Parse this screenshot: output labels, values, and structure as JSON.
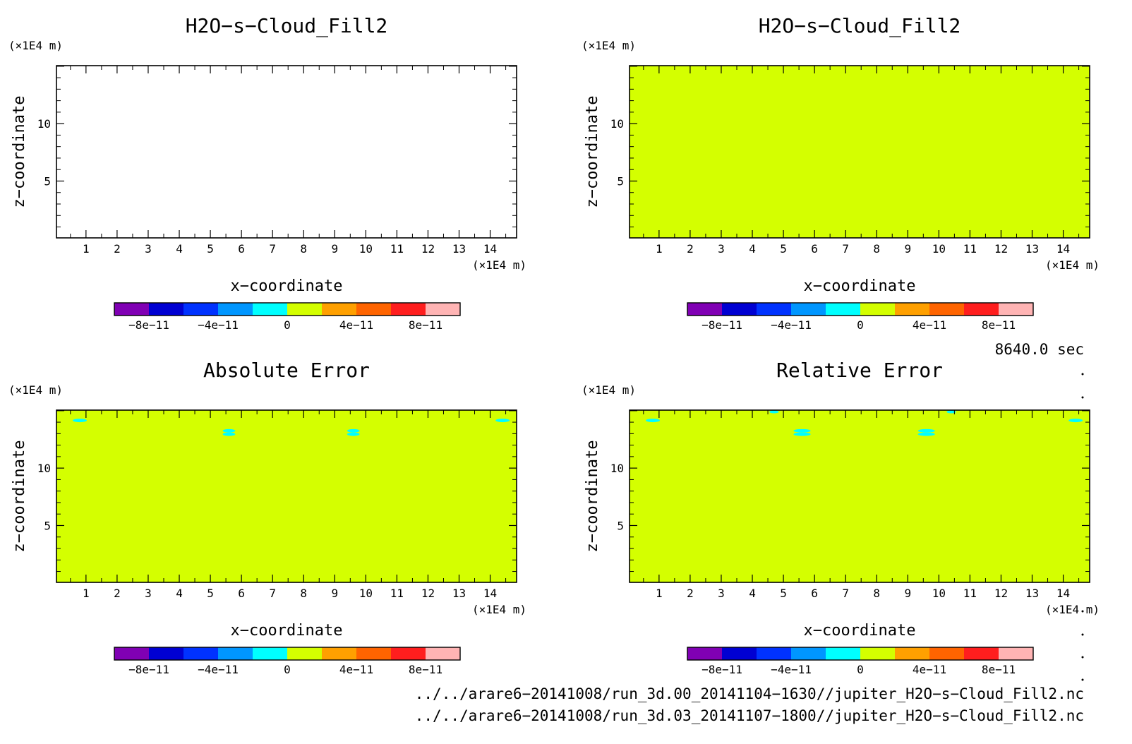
{
  "colors": {
    "fill": "#d4ff00",
    "cyan": "#00ffff",
    "frame": "#000000",
    "colorbar": [
      "#8000b4",
      "#0000d2",
      "#0032ff",
      "#0096ff",
      "#00ffff",
      "#d4ff00",
      "#ffa000",
      "#ff6400",
      "#ff1e1e",
      "#ffb4b4"
    ]
  },
  "colorbar": {
    "range": [
      -1e-10,
      1e-10
    ],
    "tick_values": [
      -8e-11,
      -4e-11,
      0,
      4e-11,
      8e-11
    ],
    "tick_labels": [
      "−8e−11",
      "−4e−11",
      "0",
      "4e−11",
      "8e−11"
    ]
  },
  "time_label": "8640.0 sec",
  "files": [
    "../../arare6−20141008/run_3d.00_20141104−1630//jupiter_H2O−s−Cloud_Fill2.nc",
    "../../arare6−20141008/run_3d.03_20141107−1800//jupiter_H2O−s−Cloud_Fill2.nc"
  ],
  "chart_data": [
    {
      "type": "heatmap",
      "title": "H2O−s−Cloud_Fill2",
      "xlabel": "x−coordinate",
      "ylabel": "z−coordinate",
      "x_unit": "(×1E4 m)",
      "y_unit": "(×1E4 m)",
      "xlim": [
        0.05,
        14.85
      ],
      "ylim": [
        0.05,
        15.05
      ],
      "x_ticks": [
        1,
        2,
        3,
        4,
        5,
        6,
        7,
        8,
        9,
        10,
        11,
        12,
        13,
        14
      ],
      "y_ticks": [
        5,
        10
      ],
      "fill": "none",
      "blobs": []
    },
    {
      "type": "heatmap",
      "title": "H2O−s−Cloud_Fill2",
      "xlabel": "x−coordinate",
      "ylabel": "z−coordinate",
      "x_unit": "(×1E4 m)",
      "y_unit": "(×1E4 m)",
      "xlim": [
        0.05,
        14.85
      ],
      "ylim": [
        0.05,
        15.05
      ],
      "x_ticks": [
        1,
        2,
        3,
        4,
        5,
        6,
        7,
        8,
        9,
        10,
        11,
        12,
        13,
        14
      ],
      "y_ticks": [
        5,
        10
      ],
      "fill": "uniform",
      "blobs": []
    },
    {
      "type": "heatmap",
      "title": "Absolute Error",
      "xlabel": "x−coordinate",
      "ylabel": "z−coordinate",
      "x_unit": "(×1E4 m)",
      "y_unit": "(×1E4 m)",
      "xlim": [
        0.05,
        14.85
      ],
      "ylim": [
        0.05,
        15.05
      ],
      "x_ticks": [
        1,
        2,
        3,
        4,
        5,
        6,
        7,
        8,
        9,
        10,
        11,
        12,
        13,
        14
      ],
      "y_ticks": [
        5,
        10
      ],
      "fill": "uniform",
      "blobs": [
        {
          "x": 0.8,
          "z": 14.15,
          "w": 0.45,
          "h": 0.3
        },
        {
          "x": 5.6,
          "z": 13.25,
          "w": 0.4,
          "h": 0.3
        },
        {
          "x": 5.6,
          "z": 12.95,
          "w": 0.4,
          "h": 0.3
        },
        {
          "x": 9.6,
          "z": 13.25,
          "w": 0.4,
          "h": 0.3
        },
        {
          "x": 9.6,
          "z": 12.95,
          "w": 0.4,
          "h": 0.3
        },
        {
          "x": 14.4,
          "z": 14.15,
          "w": 0.45,
          "h": 0.3
        }
      ]
    },
    {
      "type": "heatmap",
      "title": "Relative Error",
      "xlabel": "x−coordinate",
      "ylabel": "z−coordinate",
      "x_unit": "(×1E4 m)",
      "y_unit": "(×1E4 m)",
      "xlim": [
        0.05,
        14.85
      ],
      "ylim": [
        0.05,
        15.05
      ],
      "x_ticks": [
        1,
        2,
        3,
        4,
        5,
        6,
        7,
        8,
        9,
        10,
        11,
        12,
        13,
        14
      ],
      "y_ticks": [
        5,
        10
      ],
      "fill": "uniform",
      "blobs": [
        {
          "x": 0.8,
          "z": 14.15,
          "w": 0.45,
          "h": 0.3
        },
        {
          "x": 4.7,
          "z": 14.9,
          "w": 0.3,
          "h": 0.25
        },
        {
          "x": 5.6,
          "z": 13.25,
          "w": 0.55,
          "h": 0.3
        },
        {
          "x": 5.6,
          "z": 12.95,
          "w": 0.55,
          "h": 0.3
        },
        {
          "x": 9.6,
          "z": 13.25,
          "w": 0.55,
          "h": 0.3
        },
        {
          "x": 9.6,
          "z": 12.95,
          "w": 0.55,
          "h": 0.3
        },
        {
          "x": 10.4,
          "z": 14.9,
          "w": 0.3,
          "h": 0.25
        },
        {
          "x": 14.4,
          "z": 14.15,
          "w": 0.45,
          "h": 0.3
        }
      ]
    }
  ]
}
